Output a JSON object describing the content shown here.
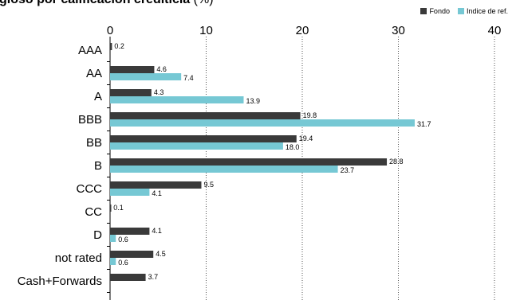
{
  "title": {
    "main": "gioso por calificación crediticia",
    "suffix": "(%)"
  },
  "chart_data": {
    "type": "bar",
    "orientation": "horizontal",
    "categories": [
      "AAA",
      "AA",
      "A",
      "BBB",
      "BB",
      "B",
      "CCC",
      "CC",
      "D",
      "not rated",
      "Cash+Forwards"
    ],
    "series": [
      {
        "name": "Fondo",
        "color": "#3a3a3a",
        "values": [
          0.2,
          4.6,
          4.3,
          19.8,
          19.4,
          28.8,
          9.5,
          0.1,
          4.1,
          4.5,
          3.7
        ],
        "labels": [
          "0.2",
          "4.6",
          "4.3",
          "19.8",
          "19.4",
          "28.8",
          "9.5",
          "0.1",
          "4.1",
          "4.5",
          "3.7"
        ]
      },
      {
        "name": "Indice de ref.",
        "color": "#76c8d4",
        "values": [
          null,
          7.4,
          13.9,
          31.7,
          18.0,
          23.7,
          4.1,
          null,
          0.6,
          0.6,
          null
        ],
        "labels": [
          "",
          "7.4",
          "13.9",
          "31.7",
          "18.0",
          "23.7",
          "4.1",
          "",
          "0.6",
          "0.6",
          ""
        ]
      }
    ],
    "xlim": [
      0,
      40
    ],
    "xticks": [
      "0",
      "10",
      "20",
      "30",
      "40"
    ],
    "grid": "vertical dotted",
    "legend_position": "top-right"
  }
}
